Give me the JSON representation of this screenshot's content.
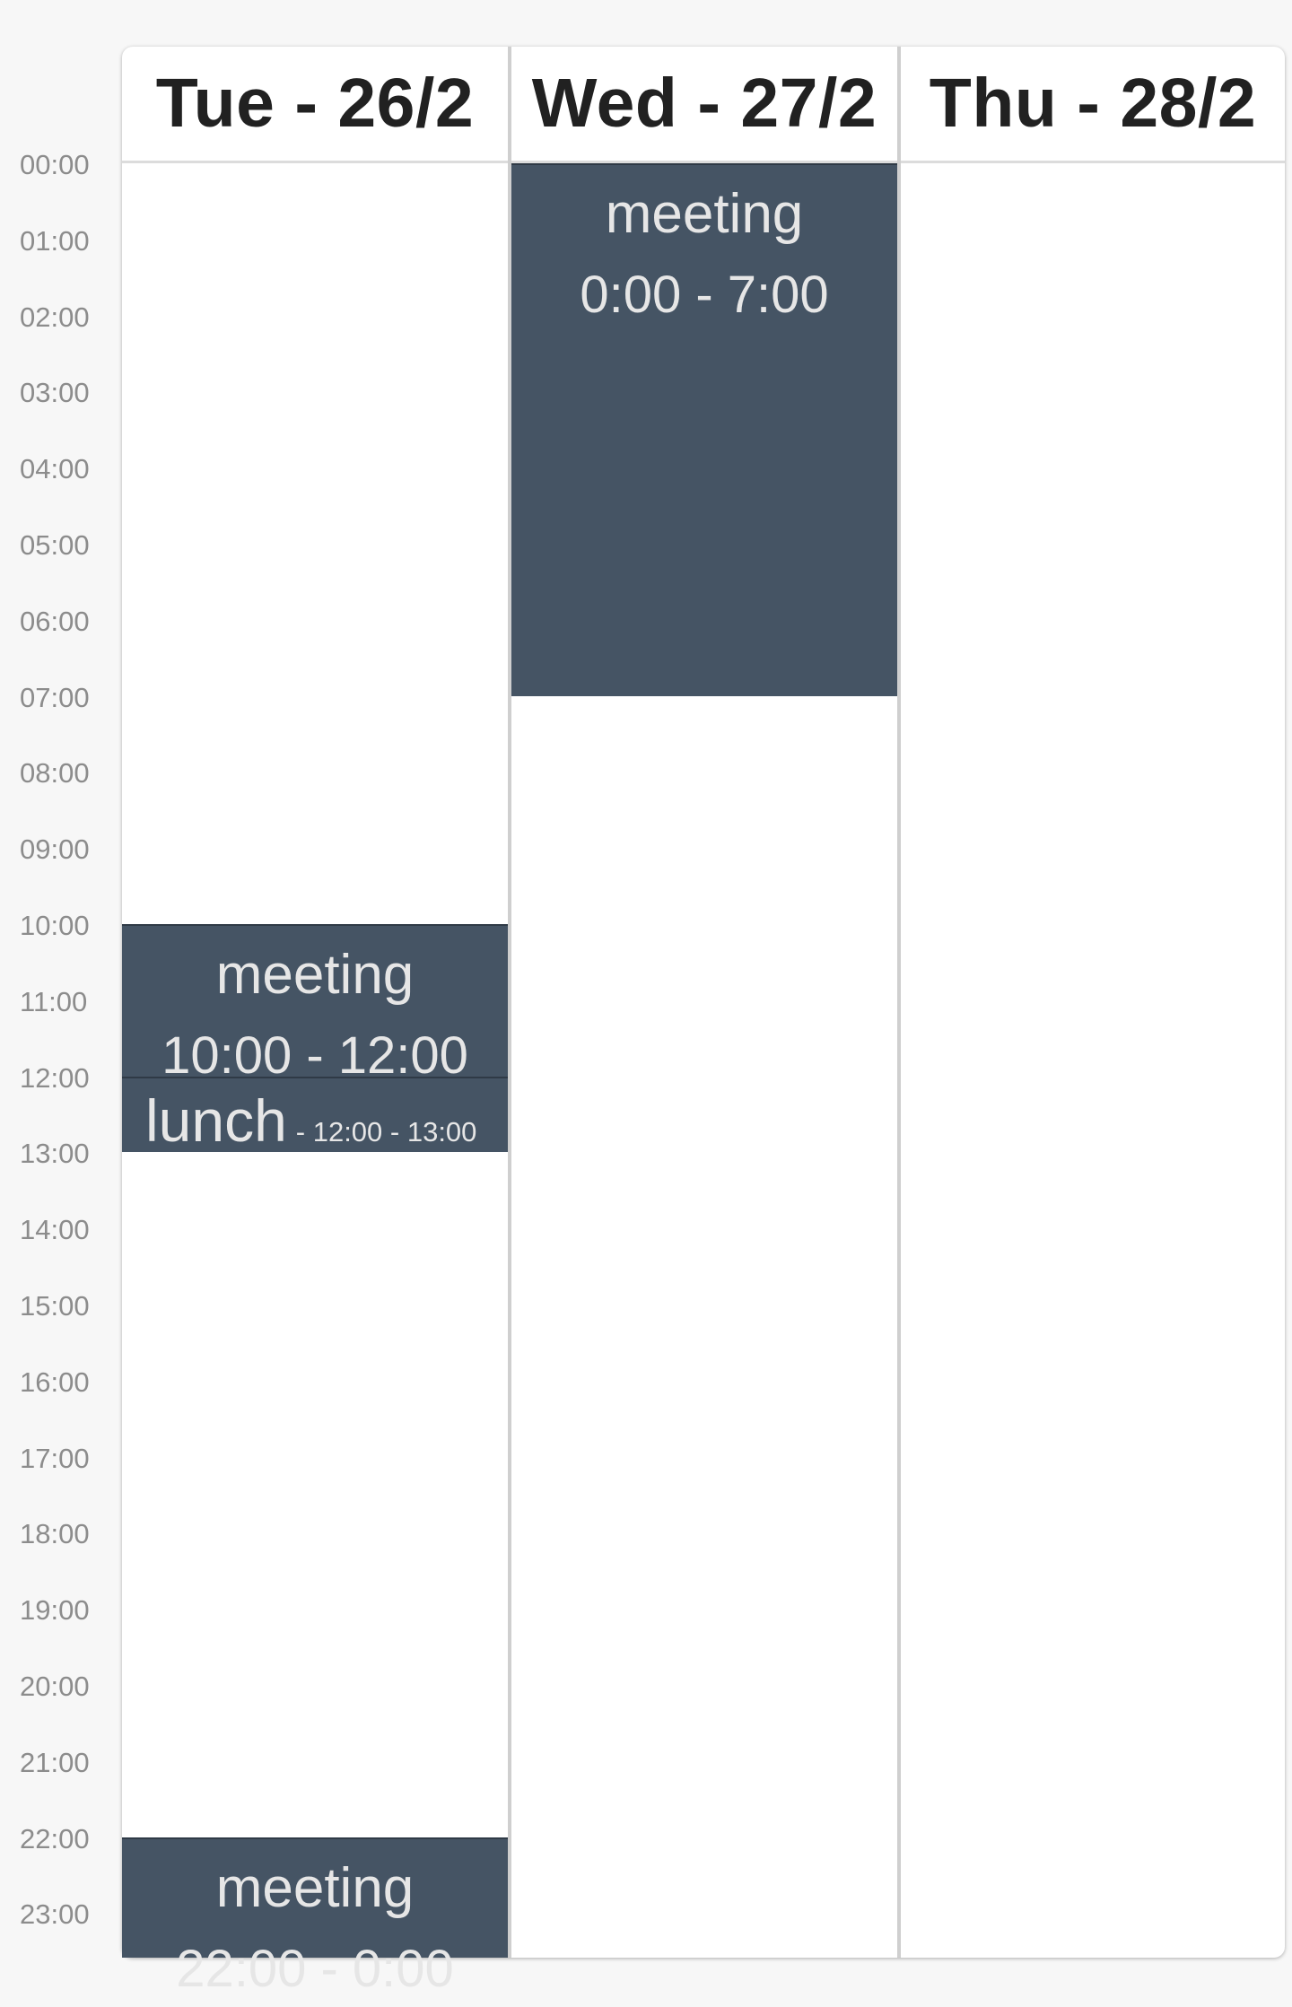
{
  "time_labels": [
    "00:00",
    "01:00",
    "02:00",
    "03:00",
    "04:00",
    "05:00",
    "06:00",
    "07:00",
    "08:00",
    "09:00",
    "10:00",
    "11:00",
    "12:00",
    "13:00",
    "14:00",
    "15:00",
    "16:00",
    "17:00",
    "18:00",
    "19:00",
    "20:00",
    "21:00",
    "22:00",
    "23:00"
  ],
  "days": [
    {
      "header": "Tue - 26/2",
      "events": [
        {
          "title": "meeting",
          "time": "10:00 - 12:00",
          "start": 10,
          "end": 12,
          "style": "full"
        },
        {
          "title": "lunch",
          "time": "- 12:00 - 13:00",
          "start": 12,
          "end": 13,
          "style": "compact"
        },
        {
          "title": "meeting",
          "time": "22:00 - 0:00",
          "start": 22,
          "end": 24,
          "style": "full"
        }
      ]
    },
    {
      "header": "Wed - 27/2",
      "events": [
        {
          "title": "meeting",
          "time": "0:00 - 7:00",
          "start": 0,
          "end": 7,
          "style": "full"
        }
      ]
    },
    {
      "header": "Thu - 28/2",
      "events": []
    }
  ],
  "colors": {
    "event_bg": "#455464",
    "event_text": "#e6e6e6",
    "header_text": "#212121",
    "time_label": "#8c8c8c",
    "divider": "#cfcfcf"
  }
}
